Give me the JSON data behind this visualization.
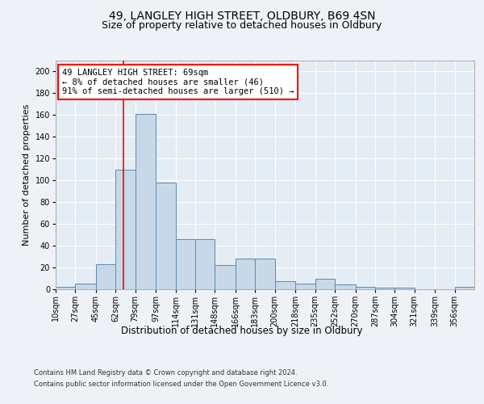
{
  "title1": "49, LANGLEY HIGH STREET, OLDBURY, B69 4SN",
  "title2": "Size of property relative to detached houses in Oldbury",
  "xlabel": "Distribution of detached houses by size in Oldbury",
  "ylabel": "Number of detached properties",
  "footnote1": "Contains HM Land Registry data © Crown copyright and database right 2024.",
  "footnote2": "Contains public sector information licensed under the Open Government Licence v3.0.",
  "annotation_line1": "49 LANGLEY HIGH STREET: 69sqm",
  "annotation_line2": "← 8% of detached houses are smaller (46)",
  "annotation_line3": "91% of semi-detached houses are larger (510) →",
  "bar_color": "#c8d8e8",
  "bar_edge_color": "#5a8ab0",
  "red_line_x": 69,
  "categories": [
    "10sqm",
    "27sqm",
    "45sqm",
    "62sqm",
    "79sqm",
    "97sqm",
    "114sqm",
    "131sqm",
    "148sqm",
    "166sqm",
    "183sqm",
    "200sqm",
    "218sqm",
    "235sqm",
    "252sqm",
    "270sqm",
    "287sqm",
    "304sqm",
    "321sqm",
    "339sqm",
    "356sqm"
  ],
  "bin_edges": [
    10,
    27,
    45,
    62,
    79,
    97,
    114,
    131,
    148,
    166,
    183,
    200,
    218,
    235,
    252,
    270,
    287,
    304,
    321,
    339,
    356,
    373
  ],
  "values": [
    2,
    5,
    23,
    110,
    161,
    98,
    46,
    46,
    22,
    28,
    28,
    7,
    5,
    9,
    4,
    2,
    1,
    1,
    0,
    0,
    2
  ],
  "ylim": [
    0,
    210
  ],
  "yticks": [
    0,
    20,
    40,
    60,
    80,
    100,
    120,
    140,
    160,
    180,
    200
  ],
  "background_color": "#eef2f7",
  "plot_bg_color": "#e4ecf4",
  "grid_color": "#ffffff",
  "title1_fontsize": 10,
  "title2_fontsize": 9,
  "xlabel_fontsize": 8.5,
  "ylabel_fontsize": 8,
  "tick_fontsize": 7,
  "footnote_fontsize": 6,
  "annot_fontsize": 7.5
}
